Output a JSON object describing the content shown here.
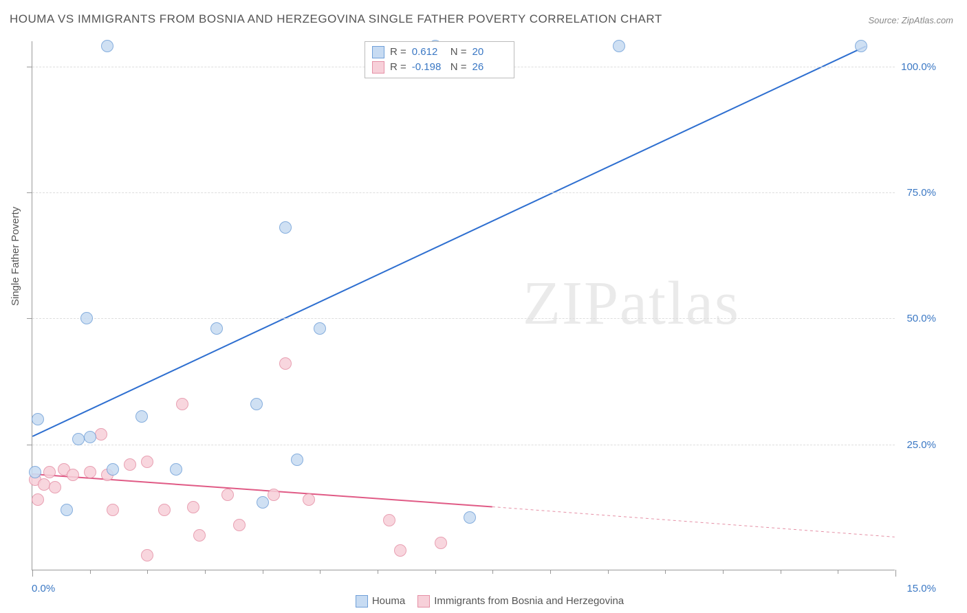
{
  "title": "HOUMA VS IMMIGRANTS FROM BOSNIA AND HERZEGOVINA SINGLE FATHER POVERTY CORRELATION CHART",
  "source": "Source: ZipAtlas.com",
  "watermark": {
    "zip": "ZIP",
    "atlas": "atlas"
  },
  "chart": {
    "type": "scatter",
    "ylabel": "Single Father Poverty",
    "xlim": [
      0,
      15
    ],
    "ylim": [
      0,
      105
    ],
    "x_ticks_major": [
      0,
      15
    ],
    "x_ticks_minor": [
      1,
      2,
      3,
      4,
      5,
      6,
      7,
      8,
      9,
      10,
      11,
      12,
      13,
      14
    ],
    "x_tick_labels": {
      "0": "0.0%",
      "15": "15.0%"
    },
    "y_gridlines": [
      25,
      50,
      75,
      100
    ],
    "y_tick_labels": {
      "25": "25.0%",
      "50": "50.0%",
      "75": "75.0%",
      "100": "100.0%"
    },
    "background_color": "#ffffff",
    "grid_color": "#dddddd",
    "axis_color": "#999999",
    "label_color": "#555555",
    "tick_label_color": "#3b78c4",
    "point_radius": 9,
    "series": [
      {
        "name": "Houma",
        "color_fill": "#c7dbf2",
        "color_stroke": "#6f9fd8",
        "trend_color": "#2e6fd0",
        "trend_width": 2,
        "R": "0.612",
        "N": "20",
        "trend": {
          "x1": 0,
          "y1": 26.5,
          "x2": 14.5,
          "y2": 104
        },
        "points": [
          {
            "x": 0.05,
            "y": 19.5
          },
          {
            "x": 0.1,
            "y": 30.0
          },
          {
            "x": 0.6,
            "y": 12.0
          },
          {
            "x": 0.8,
            "y": 26.0
          },
          {
            "x": 1.0,
            "y": 26.5
          },
          {
            "x": 0.95,
            "y": 50.0
          },
          {
            "x": 1.3,
            "y": 104.0
          },
          {
            "x": 1.4,
            "y": 20.0
          },
          {
            "x": 1.9,
            "y": 30.5
          },
          {
            "x": 2.5,
            "y": 20.0
          },
          {
            "x": 3.2,
            "y": 48.0
          },
          {
            "x": 3.9,
            "y": 33.0
          },
          {
            "x": 4.0,
            "y": 13.5
          },
          {
            "x": 4.4,
            "y": 68.0
          },
          {
            "x": 4.6,
            "y": 22.0
          },
          {
            "x": 5.0,
            "y": 48.0
          },
          {
            "x": 7.0,
            "y": 104.0
          },
          {
            "x": 7.6,
            "y": 10.5
          },
          {
            "x": 10.2,
            "y": 104.0
          },
          {
            "x": 14.4,
            "y": 104.0
          }
        ]
      },
      {
        "name": "Immigrants from Bosnia and Herzegovina",
        "color_fill": "#f7d0d9",
        "color_stroke": "#e58fa5",
        "trend_color": "#e05a85",
        "trend_width": 2,
        "R": "-0.198",
        "N": "26",
        "trend": {
          "x1": 0,
          "y1": 19.0,
          "x2": 8.0,
          "y2": 12.5
        },
        "trend_dashed_extension": {
          "x1": 8.0,
          "y1": 12.5,
          "x2": 15.0,
          "y2": 6.5
        },
        "points": [
          {
            "x": 0.05,
            "y": 18.0
          },
          {
            "x": 0.1,
            "y": 14.0
          },
          {
            "x": 0.2,
            "y": 17.0
          },
          {
            "x": 0.3,
            "y": 19.5
          },
          {
            "x": 0.4,
            "y": 16.5
          },
          {
            "x": 0.55,
            "y": 20.0
          },
          {
            "x": 0.7,
            "y": 19.0
          },
          {
            "x": 1.0,
            "y": 19.5
          },
          {
            "x": 1.2,
            "y": 27.0
          },
          {
            "x": 1.3,
            "y": 19.0
          },
          {
            "x": 1.4,
            "y": 12.0
          },
          {
            "x": 1.7,
            "y": 21.0
          },
          {
            "x": 2.0,
            "y": 21.5
          },
          {
            "x": 2.0,
            "y": 3.0
          },
          {
            "x": 2.3,
            "y": 12.0
          },
          {
            "x": 2.6,
            "y": 33.0
          },
          {
            "x": 2.8,
            "y": 12.5
          },
          {
            "x": 2.9,
            "y": 7.0
          },
          {
            "x": 3.4,
            "y": 15.0
          },
          {
            "x": 3.6,
            "y": 9.0
          },
          {
            "x": 4.2,
            "y": 15.0
          },
          {
            "x": 4.4,
            "y": 41.0
          },
          {
            "x": 4.8,
            "y": 14.0
          },
          {
            "x": 6.2,
            "y": 10.0
          },
          {
            "x": 6.4,
            "y": 4.0
          },
          {
            "x": 7.1,
            "y": 5.5
          }
        ]
      }
    ],
    "legend_top": {
      "r_label": "R =",
      "n_label": "N ="
    },
    "legend_bottom": true
  }
}
